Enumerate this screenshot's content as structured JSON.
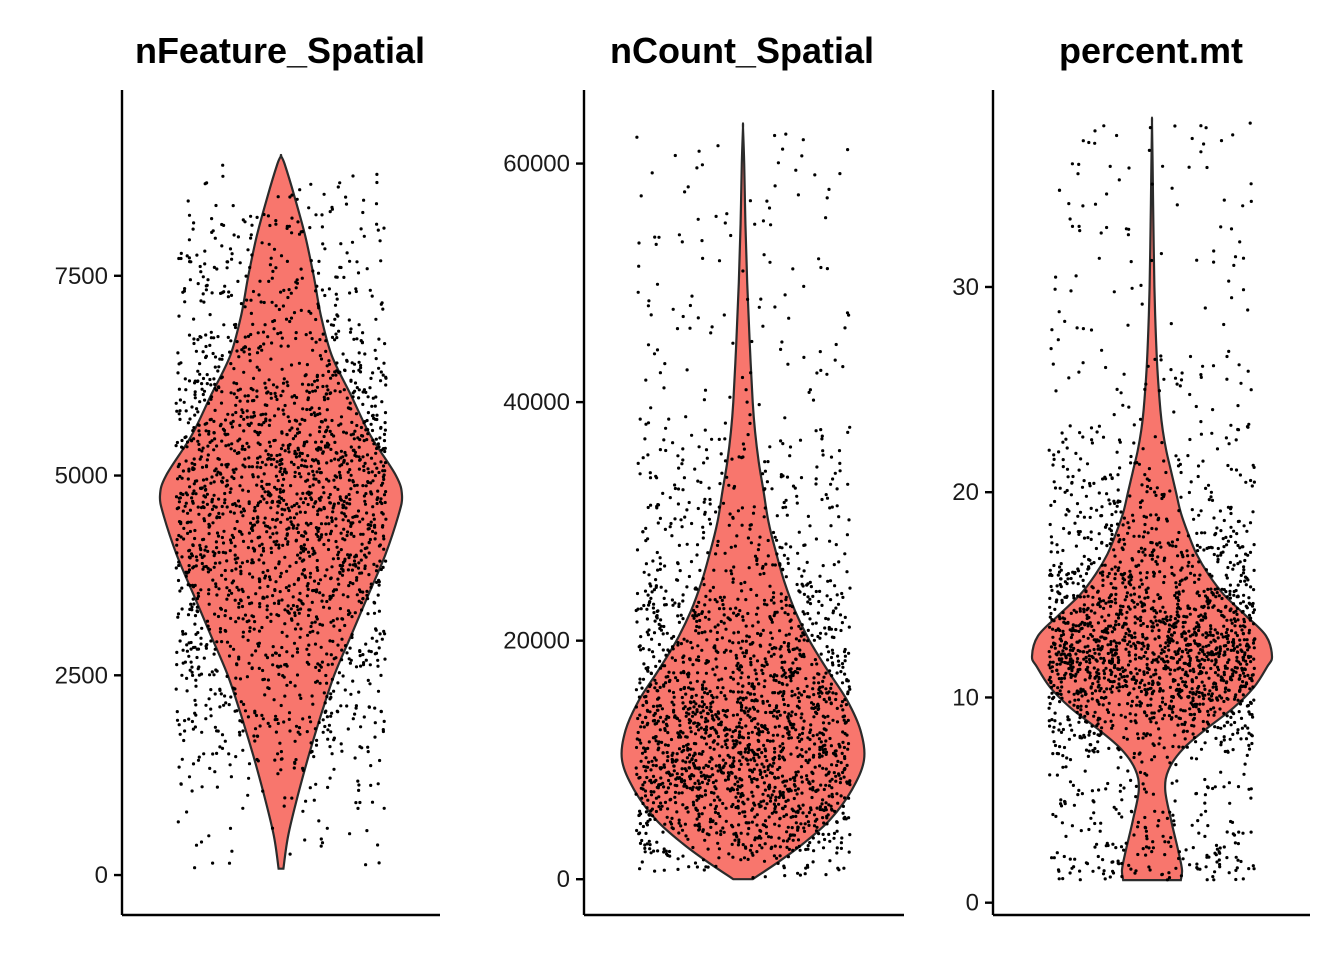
{
  "chart_data": [
    {
      "type": "violin",
      "title": "nFeature_Spatial",
      "xlabel": "",
      "ylabel": "",
      "ylim": [
        -500,
        9800
      ],
      "yticks": [
        0,
        2500,
        5000,
        7500
      ],
      "fill_color": "#F8766D",
      "point_color": "#000000",
      "n_points": 2200,
      "violin_profile": [
        {
          "y": 80,
          "w": 0.02
        },
        {
          "y": 500,
          "w": 0.06
        },
        {
          "y": 1000,
          "w": 0.14
        },
        {
          "y": 1500,
          "w": 0.23
        },
        {
          "y": 2000,
          "w": 0.33
        },
        {
          "y": 2500,
          "w": 0.44
        },
        {
          "y": 3000,
          "w": 0.58
        },
        {
          "y": 3500,
          "w": 0.72
        },
        {
          "y": 4000,
          "w": 0.86
        },
        {
          "y": 4500,
          "w": 0.97
        },
        {
          "y": 4750,
          "w": 1.0
        },
        {
          "y": 5000,
          "w": 0.95
        },
        {
          "y": 5500,
          "w": 0.74
        },
        {
          "y": 6000,
          "w": 0.58
        },
        {
          "y": 6500,
          "w": 0.42
        },
        {
          "y": 7000,
          "w": 0.33
        },
        {
          "y": 7500,
          "w": 0.27
        },
        {
          "y": 8000,
          "w": 0.2
        },
        {
          "y": 8500,
          "w": 0.11
        },
        {
          "y": 8900,
          "w": 0.03
        },
        {
          "y": 9000,
          "w": 0.0
        }
      ]
    },
    {
      "type": "violin",
      "title": "nCount_Spatial",
      "xlabel": "",
      "ylabel": "",
      "ylim": [
        -3000,
        66000
      ],
      "yticks": [
        0,
        20000,
        40000,
        60000
      ],
      "fill_color": "#F8766D",
      "point_color": "#000000",
      "n_points": 2200,
      "violin_profile": [
        {
          "y": 0,
          "w": 0.08
        },
        {
          "y": 1500,
          "w": 0.3
        },
        {
          "y": 3000,
          "w": 0.5
        },
        {
          "y": 5000,
          "w": 0.72
        },
        {
          "y": 7500,
          "w": 0.9
        },
        {
          "y": 10000,
          "w": 1.0
        },
        {
          "y": 12500,
          "w": 0.97
        },
        {
          "y": 15000,
          "w": 0.86
        },
        {
          "y": 17500,
          "w": 0.7
        },
        {
          "y": 20000,
          "w": 0.55
        },
        {
          "y": 22500,
          "w": 0.43
        },
        {
          "y": 25000,
          "w": 0.34
        },
        {
          "y": 27500,
          "w": 0.27
        },
        {
          "y": 30000,
          "w": 0.21
        },
        {
          "y": 32500,
          "w": 0.17
        },
        {
          "y": 35000,
          "w": 0.13
        },
        {
          "y": 37500,
          "w": 0.1
        },
        {
          "y": 40000,
          "w": 0.08
        },
        {
          "y": 45000,
          "w": 0.055
        },
        {
          "y": 50000,
          "w": 0.035
        },
        {
          "y": 55000,
          "w": 0.02
        },
        {
          "y": 60000,
          "w": 0.01
        },
        {
          "y": 63000,
          "w": 0.0
        }
      ]
    },
    {
      "type": "violin",
      "title": "percent.mt",
      "xlabel": "",
      "ylabel": "",
      "ylim": [
        -0.6,
        39.5
      ],
      "yticks": [
        0,
        10,
        20,
        30
      ],
      "fill_color": "#F8766D",
      "point_color": "#000000",
      "n_points": 2200,
      "violin_profile": [
        {
          "y": 1.1,
          "w": 0.24
        },
        {
          "y": 1.6,
          "w": 0.25
        },
        {
          "y": 2.5,
          "w": 0.22
        },
        {
          "y": 4,
          "w": 0.16
        },
        {
          "y": 5.5,
          "w": 0.11
        },
        {
          "y": 6.5,
          "w": 0.14
        },
        {
          "y": 7.5,
          "w": 0.26
        },
        {
          "y": 8.5,
          "w": 0.46
        },
        {
          "y": 9.5,
          "w": 0.68
        },
        {
          "y": 10.5,
          "w": 0.85
        },
        {
          "y": 11.5,
          "w": 0.96
        },
        {
          "y": 12,
          "w": 1.0
        },
        {
          "y": 13,
          "w": 0.95
        },
        {
          "y": 14,
          "w": 0.78
        },
        {
          "y": 15,
          "w": 0.6
        },
        {
          "y": 16,
          "w": 0.47
        },
        {
          "y": 17,
          "w": 0.37
        },
        {
          "y": 18,
          "w": 0.3
        },
        {
          "y": 19,
          "w": 0.24
        },
        {
          "y": 20,
          "w": 0.2
        },
        {
          "y": 21,
          "w": 0.16
        },
        {
          "y": 22,
          "w": 0.12
        },
        {
          "y": 23,
          "w": 0.09
        },
        {
          "y": 24,
          "w": 0.07
        },
        {
          "y": 26,
          "w": 0.045
        },
        {
          "y": 28,
          "w": 0.03
        },
        {
          "y": 30,
          "w": 0.02
        },
        {
          "y": 33,
          "w": 0.012
        },
        {
          "y": 36,
          "w": 0.005
        },
        {
          "y": 38,
          "w": 0.0
        }
      ]
    }
  ]
}
